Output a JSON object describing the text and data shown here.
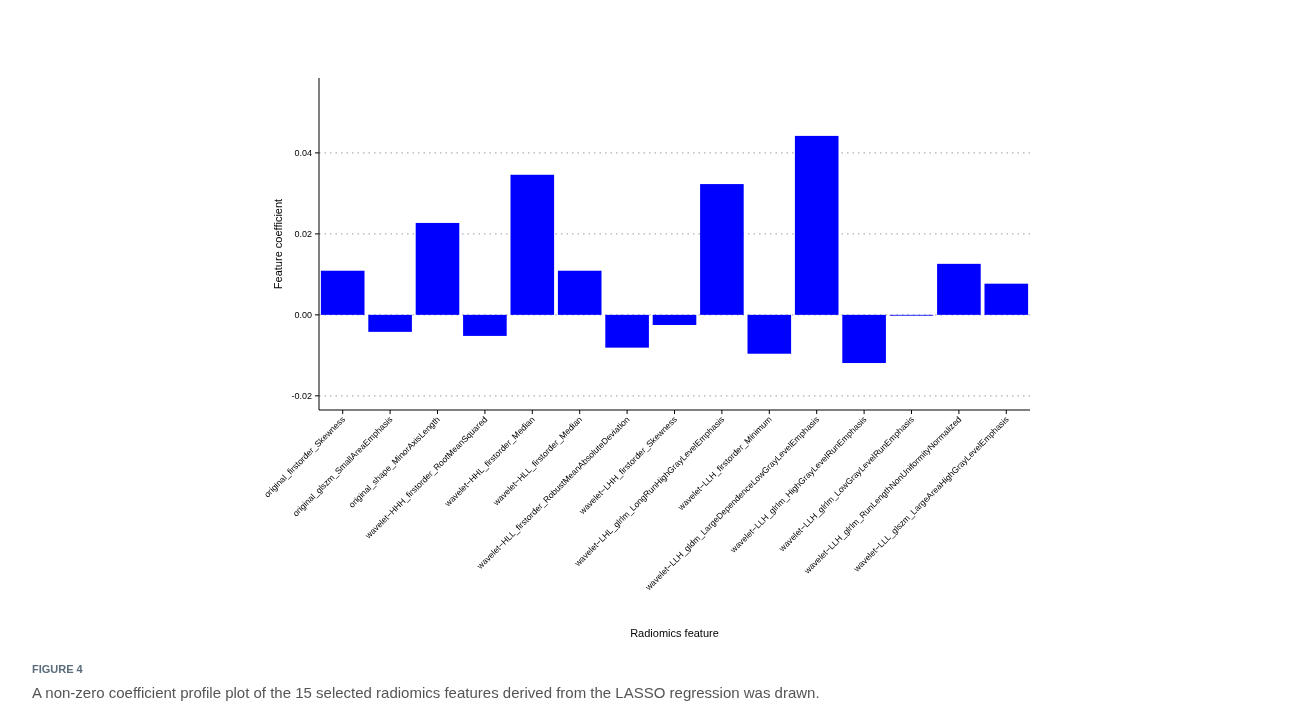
{
  "chart_data": {
    "type": "bar",
    "categories": [
      "original_firstorder_Skewness",
      "original_glszm_SmallAreaEmphasis",
      "original_shape_MinorAxisLength",
      "wavelet−HHH_firstorder_RootMeanSquared",
      "wavelet−HHL_firstorder_Median",
      "wavelet−HLL_firstorder_Median",
      "wavelet−HLL_firstorder_RobustMeanAbsoluteDeviation",
      "wavelet−LHH_firstorder_Skewness",
      "wavelet−LHL_glrlm_LongRunHighGrayLevelEmphasis",
      "wavelet−LLH_firstorder_Minimum",
      "wavelet−LLH_gldm_LargeDependenceLowGrayLevelEmphasis",
      "wavelet−LLH_glrlm_HighGrayLevelRunEmphasis",
      "wavelet−LLH_glrlm_LowGrayLevelRunEmphasis",
      "wavelet−LLH_glrlm_RunLengthNonUniformityNormalized",
      "wavelet−LLL_glszm_LargeAreaHighGrayLevelEmphasis"
    ],
    "values": [
      0.0109,
      -0.0042,
      0.0227,
      -0.0052,
      0.0346,
      0.0109,
      -0.0081,
      -0.0025,
      0.0323,
      -0.0096,
      0.0442,
      -0.0119,
      -0.0002,
      0.0126,
      0.0077
    ],
    "color": "#0000ff",
    "xlabel": "Radiomics feature",
    "ylabel": "Feature coefficient",
    "ylim": [
      -0.0235,
      0.0585
    ],
    "yticks": [
      {
        "value": -0.02,
        "label": "-0.02"
      },
      {
        "value": 0,
        "label": "0.00"
      },
      {
        "value": 0.02,
        "label": "0.02"
      },
      {
        "value": 0.04,
        "label": "0.04"
      }
    ],
    "grid": "y",
    "annotations": [
      "FIGURE 4",
      "A non-zero coefficient profile plot of the 15 selected radiomics features derived from the LASSO regression was drawn."
    ]
  }
}
